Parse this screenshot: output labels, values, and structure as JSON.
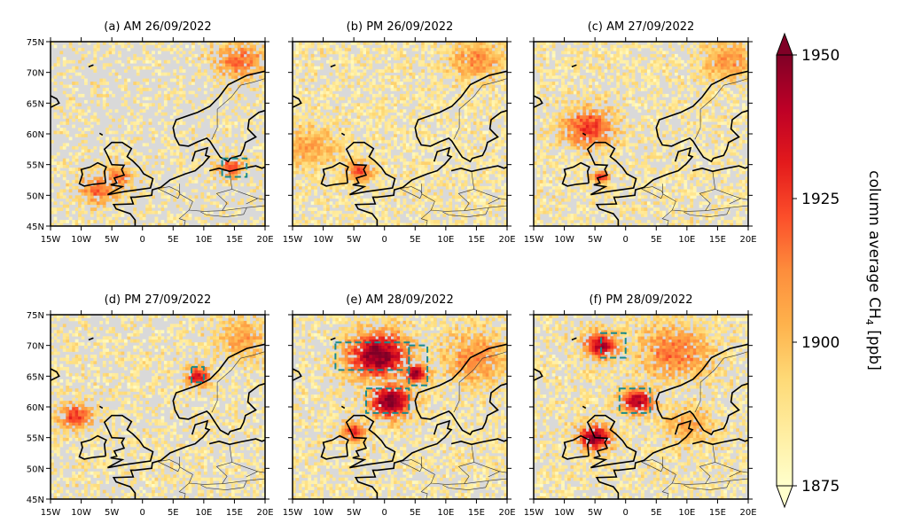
{
  "chart_data": {
    "type": "heatmap",
    "projection": "lon-lat map",
    "lon_range": [
      -15,
      20
    ],
    "lat_range": [
      45,
      75
    ],
    "x_ticks": [
      "15W",
      "10W",
      "5W",
      "0",
      "5E",
      "10E",
      "15E",
      "20E"
    ],
    "y_ticks": [
      "45N",
      "50N",
      "55N",
      "60N",
      "65N",
      "70N",
      "75N"
    ],
    "missing_color": "#d9d9d9",
    "box_color": "#1a8a8a",
    "colorbar": {
      "label": "column average CH",
      "label_sub": "4",
      "label_unit": " [ppb]",
      "range": [
        1875,
        1950
      ],
      "ticks": [
        "1875",
        "1900",
        "1925",
        "1950"
      ],
      "colormap": "YlOrRd",
      "extend": "both"
    },
    "panels": [
      {
        "title": "(a) AM 26/09/2022",
        "coverage": 0.35,
        "enhancements": [
          [
            -7,
            51,
            2.5,
            1915
          ],
          [
            14.5,
            54.5,
            1.5,
            1925
          ],
          [
            16,
            72,
            3,
            1915
          ],
          [
            -4,
            53,
            2,
            1912
          ]
        ],
        "boxes": [
          [
            13,
            17,
            53,
            56
          ]
        ]
      },
      {
        "title": "(b) PM 26/09/2022",
        "coverage": 0.55,
        "enhancements": [
          [
            -4,
            54,
            1.5,
            1925
          ],
          [
            -12,
            58,
            3,
            1905
          ],
          [
            15,
            72,
            3,
            1908
          ]
        ],
        "boxes": []
      },
      {
        "title": "(c) AM 27/09/2022",
        "coverage": 0.5,
        "enhancements": [
          [
            -6,
            61,
            3,
            1925
          ],
          [
            -4,
            53,
            1,
            1925
          ],
          [
            17,
            72,
            3,
            1908
          ]
        ],
        "boxes": []
      },
      {
        "title": "(d) PM 27/09/2022",
        "coverage": 0.45,
        "enhancements": [
          [
            9,
            65,
            1.5,
            1935
          ],
          [
            -11,
            58.5,
            2,
            1925
          ],
          [
            16,
            71,
            3,
            1905
          ]
        ],
        "boxes": [
          [
            8,
            10,
            64,
            66.5
          ]
        ]
      },
      {
        "title": "(e) AM 28/09/2022",
        "coverage": 0.5,
        "enhancements": [
          [
            -1,
            68.5,
            3.5,
            1950
          ],
          [
            5,
            65.5,
            1.5,
            1945
          ],
          [
            1,
            61,
            2.5,
            1950
          ],
          [
            -5,
            56,
            1.5,
            1925
          ],
          [
            15,
            68,
            4,
            1910
          ]
        ],
        "boxes": [
          [
            -8,
            4,
            66,
            70.5
          ],
          [
            4,
            7,
            63.5,
            70
          ],
          [
            -3,
            4,
            59,
            63
          ]
        ]
      },
      {
        "title": "(f) PM 28/09/2022",
        "coverage": 0.5,
        "enhancements": [
          [
            -5,
            55,
            2,
            1945
          ],
          [
            -4,
            70,
            2,
            1940
          ],
          [
            2,
            61,
            2,
            1940
          ],
          [
            8,
            69,
            4,
            1915
          ],
          [
            10,
            57,
            3,
            1905
          ]
        ],
        "boxes": [
          [
            -4,
            0,
            68,
            72
          ],
          [
            -1,
            4,
            59,
            63
          ]
        ]
      }
    ]
  }
}
